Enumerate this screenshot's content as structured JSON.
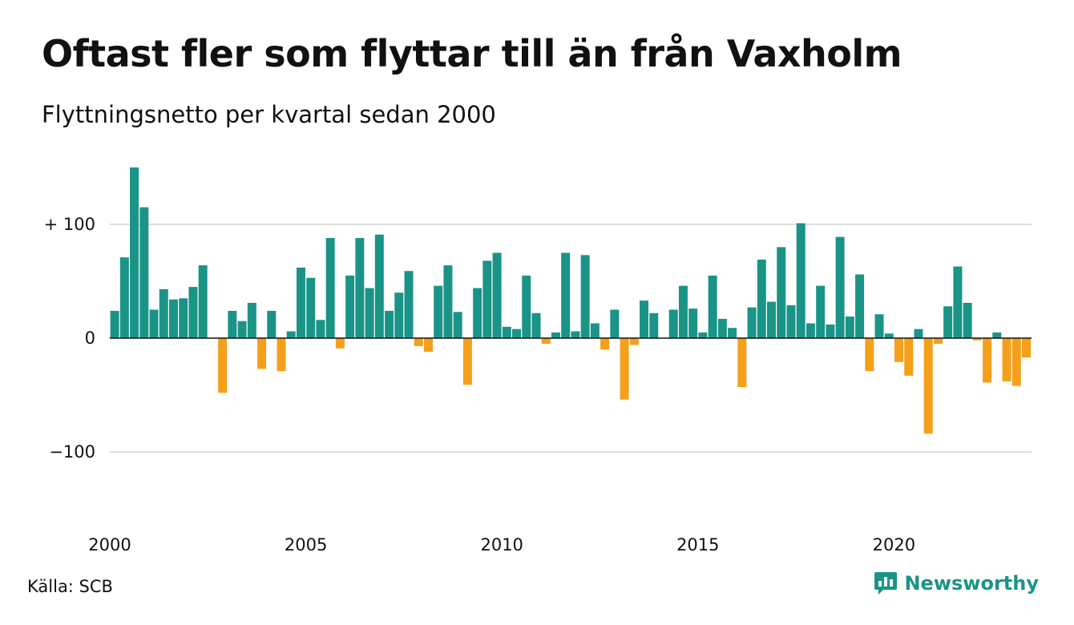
{
  "title": "Oftast fler som flyttar till än från Vaxholm",
  "subtitle": "Flyttningsnetto per kvartal sedan 2000",
  "source": "Källa: SCB",
  "brand": "Newsworthy",
  "colors": {
    "positive": "#1a9487",
    "negative": "#f5a01a",
    "grid": "#dddddd",
    "zero": "#111111",
    "brand": "#1a9487"
  },
  "chart_data": {
    "type": "bar",
    "title": "Oftast fler som flyttar till än från Vaxholm",
    "subtitle": "Flyttningsnetto per kvartal sedan 2000",
    "xlabel": "",
    "ylabel": "",
    "x_start": "2000 Q1",
    "x_ticks": [
      "2000",
      "2005",
      "2010",
      "2015",
      "2020"
    ],
    "y_ticks": [
      {
        "value": 100,
        "label": "+ 100"
      },
      {
        "value": 0,
        "label": "0"
      },
      {
        "value": -100,
        "label": "−100"
      }
    ],
    "ylim": [
      -160,
      150
    ],
    "grid": true,
    "values": [
      24,
      71,
      150,
      115,
      25,
      43,
      34,
      35,
      45,
      64,
      0,
      -48,
      24,
      15,
      31,
      -27,
      24,
      -29,
      6,
      62,
      53,
      16,
      88,
      -9,
      55,
      88,
      44,
      91,
      24,
      40,
      59,
      -7,
      -12,
      46,
      64,
      23,
      -41,
      44,
      68,
      75,
      10,
      8,
      55,
      22,
      -5,
      5,
      75,
      6,
      73,
      13,
      -10,
      25,
      -54,
      -6,
      33,
      22,
      0,
      25,
      46,
      26,
      5,
      55,
      17,
      9,
      -43,
      27,
      69,
      32,
      80,
      29,
      101,
      13,
      46,
      12,
      89,
      19,
      56,
      -29,
      21,
      4,
      -21,
      -33,
      8,
      -84,
      -5,
      28,
      63,
      31,
      -2,
      -39,
      5,
      -38,
      -42,
      -17
    ]
  }
}
